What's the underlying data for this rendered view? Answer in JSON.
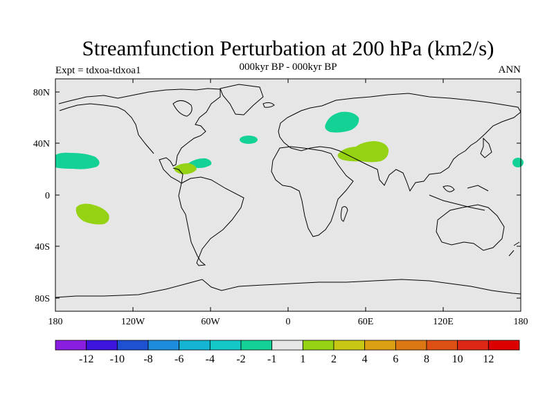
{
  "map": {
    "title": "Streamfunction Perturbation at 200 hPa (km2/s)",
    "center_string": "000kyr BP - 000kyr BP",
    "left_string": "Expt = tdxoa-tdxoa1",
    "right_string": "ANN",
    "background_color": "#e6e6e6",
    "lat_labels": [
      "80N",
      "40N",
      "0",
      "40S",
      "80S"
    ],
    "lon_labels": [
      "180",
      "120W",
      "60W",
      "0",
      "60E",
      "120E",
      "180"
    ],
    "colorbar": {
      "colors": [
        "#8a1ee0",
        "#3c14dc",
        "#1e50d2",
        "#1e8cdc",
        "#14b4d2",
        "#14c8c8",
        "#14d296",
        "#e6e6e6",
        "#96d214",
        "#c8c814",
        "#dca014",
        "#dc7814",
        "#dc5014",
        "#dc2814",
        "#dc0000"
      ],
      "labels": [
        "-12",
        "-10",
        "-8",
        "-6",
        "-4",
        "-2",
        "-1",
        "1",
        "2",
        "4",
        "6",
        "8",
        "10",
        "12"
      ]
    },
    "anomalies": [
      {
        "region": "North Pacific east of dateline",
        "level": "-2 to -1",
        "color": "#14d296"
      },
      {
        "region": "North Atlantic",
        "level": "-2 to -1",
        "color": "#14d296"
      },
      {
        "region": "Black Sea / Caspian",
        "level": "-2 to -1",
        "color": "#14d296"
      },
      {
        "region": "West Pacific subtropics",
        "level": "-2 to -1",
        "color": "#14d296"
      },
      {
        "region": "Caribbean",
        "level": "-2 to -1",
        "color": "#14d296"
      },
      {
        "region": "Caribbean",
        "level": "1 to 2",
        "color": "#96d214"
      },
      {
        "region": "Middle East / Iran",
        "level": "1 to 2",
        "color": "#96d214"
      },
      {
        "region": "South Pacific",
        "level": "1 to 2",
        "color": "#96d214"
      }
    ]
  }
}
